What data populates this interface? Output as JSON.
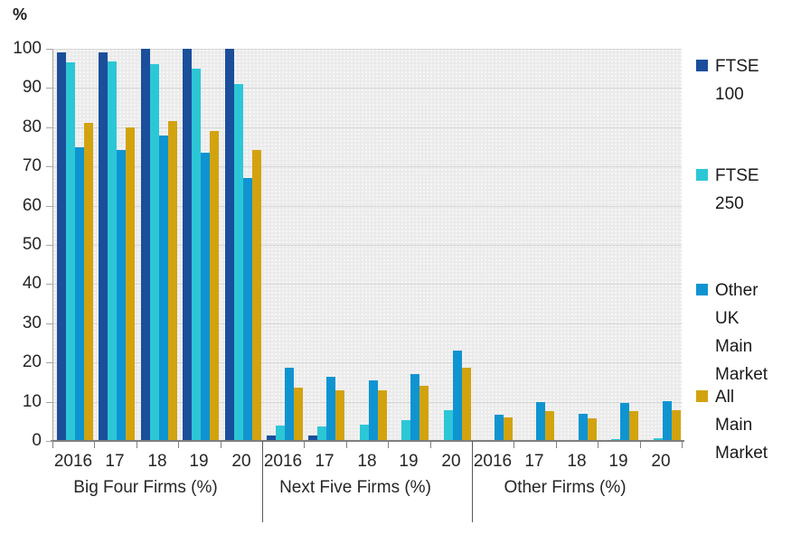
{
  "chart_data": {
    "type": "bar",
    "title": "",
    "unit_label": "%",
    "xlabel": "",
    "ylabel": "%",
    "ylim": [
      0,
      100
    ],
    "ytick_step": 10,
    "grid": true,
    "legend_position": "right",
    "plot_background": "#ebebeb",
    "groups": [
      {
        "label": "Big Four Firms (%)",
        "categories": [
          "2016",
          "17",
          "18",
          "19",
          "20"
        ]
      },
      {
        "label": "Next Five Firms (%)",
        "categories": [
          "2016",
          "17",
          "18",
          "19",
          "20"
        ]
      },
      {
        "label": "Other Firms (%)",
        "categories": [
          "2016",
          "17",
          "18",
          "19",
          "20"
        ]
      }
    ],
    "series": [
      {
        "name": "FTSE 100",
        "color": "#1b4e9b",
        "legend_lines": [
          "FTSE 100"
        ],
        "values_by_group": [
          [
            99,
            99,
            100,
            100,
            100
          ],
          [
            1.3,
            1.4,
            0,
            0,
            0
          ],
          [
            0,
            0,
            0,
            0,
            0
          ]
        ]
      },
      {
        "name": "FTSE 250",
        "color": "#2cc7d6",
        "legend_lines": [
          "FTSE 250"
        ],
        "values_by_group": [
          [
            96.5,
            96.7,
            96,
            95,
            91
          ],
          [
            4,
            3.6,
            4.2,
            5.2,
            7.8
          ],
          [
            0,
            0,
            0,
            0.5,
            0.8
          ]
        ]
      },
      {
        "name": "Other UK Main Market",
        "color": "#0f94d2",
        "legend_lines": [
          "Other UK",
          "Main",
          "Market"
        ],
        "values_by_group": [
          [
            74.8,
            74.3,
            77.8,
            73.6,
            67.1
          ],
          [
            18.6,
            16.3,
            15.5,
            17.1,
            23.1
          ],
          [
            6.7,
            9.8,
            6.9,
            9.6,
            10.1
          ]
        ]
      },
      {
        "name": "All Main Market",
        "color": "#d2a30f",
        "legend_lines": [
          "All Main",
          "Market"
        ],
        "values_by_group": [
          [
            81,
            80,
            81.6,
            79,
            74.1
          ],
          [
            13.7,
            13,
            13,
            14,
            18.7
          ],
          [
            5.9,
            7.5,
            5.7,
            7.5,
            7.8
          ]
        ]
      }
    ]
  }
}
